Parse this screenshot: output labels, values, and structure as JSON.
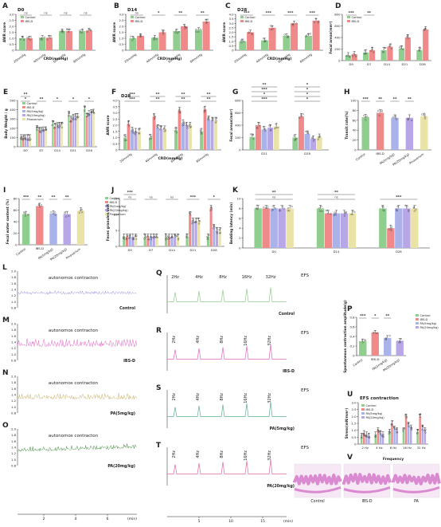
{
  "colors": {
    "control": "#8fce8f",
    "ibsd": "#f08a8a",
    "pa5": "#a9b3ea",
    "pa20": "#b7a7e6",
    "pinaverium": "#e9e3a8",
    "trace_control": "#9a8fd8",
    "trace_ibsd": "#e066c4",
    "trace_pa5": "#c8b068",
    "trace_pa20": "#3e8a3e",
    "trace_efs_pa5": "#5fb08a",
    "trace_efs_pa20": "#e06aa0",
    "histo": "#d98ad0"
  },
  "chart_data": [
    {
      "id": "A",
      "type": "bar",
      "panel_label": "A",
      "title": "D0",
      "ylabel": "AWR score",
      "xlabel": "CRD(mmHg)",
      "categories": [
        "20mmHg",
        "40mmHg",
        "60mmHg",
        "80mmHg"
      ],
      "ylim": [
        0,
        3
      ],
      "yticks": [
        "0",
        "0.5",
        "1.0",
        "1.5",
        "2.0",
        "2.5",
        "3.0"
      ],
      "series": [
        {
          "name": "Control",
          "values": [
            1.0,
            1.05,
            1.6,
            1.6
          ]
        },
        {
          "name": "IBS-D",
          "values": [
            1.0,
            1.05,
            1.6,
            1.65
          ]
        }
      ],
      "annotations": [
        "ns",
        "ns",
        "ns",
        "ns"
      ],
      "legend": [
        "Control",
        "IBS-D"
      ]
    },
    {
      "id": "B",
      "type": "bar",
      "panel_label": "B",
      "title": "D14",
      "ylabel": "AWR score",
      "xlabel": "CRD(mmHg)",
      "categories": [
        "20mmHg",
        "40mmHg",
        "60mmHg",
        "80mmHg"
      ],
      "ylim": [
        0,
        3
      ],
      "yticks": [
        "0",
        "0.5",
        "1.0",
        "1.5",
        "2.0",
        "2.5",
        "3.0"
      ],
      "series": [
        {
          "name": "Control",
          "values": [
            1.0,
            1.05,
            1.6,
            1.7
          ]
        },
        {
          "name": "IBS-D",
          "values": [
            1.2,
            1.5,
            2.0,
            2.4
          ]
        }
      ],
      "annotations": [
        "ns",
        "*",
        "**",
        "**"
      ],
      "legend": [
        "Control",
        "IBS-D"
      ]
    },
    {
      "id": "C",
      "type": "bar",
      "panel_label": "C",
      "title": "D28",
      "ylabel": "AWR score",
      "xlabel": "CRD(mmHg)",
      "categories": [
        "20mmHg",
        "40mmHg",
        "60mmHg",
        "80mmHg"
      ],
      "ylim": [
        0,
        4
      ],
      "yticks": [
        "0",
        "0.5",
        "1.0",
        "1.5",
        "2.0",
        "2.5",
        "3.0",
        "3.5",
        "4.0"
      ],
      "series": [
        {
          "name": "Control",
          "values": [
            1.0,
            1.1,
            1.6,
            1.6
          ]
        },
        {
          "name": "IBS-D",
          "values": [
            2.0,
            2.5,
            3.0,
            3.3
          ]
        }
      ],
      "annotations": [
        "***",
        "***",
        "***",
        "***"
      ],
      "legend": [
        "Control",
        "IBS-D"
      ]
    },
    {
      "id": "D",
      "type": "bar",
      "panel_label": "D",
      "ylabel": "Fecal areas(mm²)",
      "categories": [
        "D0",
        "D7",
        "D14",
        "D21",
        "D28"
      ],
      "ylim": [
        0,
        800
      ],
      "yticks": [
        "0",
        "200",
        "400",
        "600",
        "800"
      ],
      "series": [
        {
          "name": "Control",
          "values": [
            90,
            140,
            180,
            210,
            180
          ]
        },
        {
          "name": "IBS-D",
          "values": [
            110,
            180,
            240,
            400,
            540
          ]
        }
      ],
      "annotations": [
        "***",
        "**"
      ],
      "legend": [
        "Control",
        "IBS-D"
      ]
    },
    {
      "id": "E",
      "type": "bar",
      "panel_label": "E",
      "ylabel": "Body Weight / g",
      "categories": [
        "D0",
        "D7",
        "D14",
        "D21",
        "D28"
      ],
      "ylim": [
        0,
        500
      ],
      "yticks": [
        "0",
        "100",
        "200",
        "300",
        "400",
        "500"
      ],
      "series": [
        {
          "name": "Control",
          "values": [
            100,
            200,
            250,
            350,
            410
          ]
        },
        {
          "name": "IBS-D",
          "values": [
            100,
            180,
            220,
            300,
            330
          ]
        },
        {
          "name": "PA(5mg/kg)",
          "values": [
            100,
            180,
            230,
            320,
            360
          ]
        },
        {
          "name": "PA(20mg/kg)",
          "values": [
            100,
            185,
            235,
            325,
            370
          ]
        },
        {
          "name": "Pinaverium",
          "values": [
            100,
            185,
            235,
            330,
            375
          ]
        }
      ],
      "annotations": [
        "*",
        "**",
        "*",
        "*",
        "*",
        "**"
      ],
      "legend": [
        "Control",
        "IBS-D",
        "PA(5mg/kg)",
        "PA(20mg/kg)",
        "Pinaverium"
      ]
    },
    {
      "id": "F",
      "type": "bar",
      "panel_label": "F",
      "title": "D28",
      "ylabel": "AWR score",
      "xlabel": "CRD(mmHg)",
      "categories": [
        "20mmHg",
        "40mmHg",
        "60mmHg",
        "80mmHg"
      ],
      "ylim": [
        0,
        4
      ],
      "yticks": [
        "0",
        "0.5",
        "1.0",
        "1.5",
        "2.0",
        "2.5",
        "3.0",
        "3.5",
        "4.0"
      ],
      "series": [
        {
          "name": "Control",
          "values": [
            1.0,
            1.0,
            1.6,
            1.5
          ]
        },
        {
          "name": "IBS-D",
          "values": [
            2.1,
            2.7,
            3.2,
            3.3
          ]
        },
        {
          "name": "PA(5mg/kg)",
          "values": [
            1.6,
            1.8,
            2.2,
            2.5
          ]
        },
        {
          "name": "PA(20mg/kg)",
          "values": [
            1.5,
            1.7,
            2.0,
            2.4
          ]
        },
        {
          "name": "Pinaverium",
          "values": [
            1.5,
            1.7,
            2.0,
            2.4
          ]
        }
      ],
      "annotations": [
        "***",
        "**",
        "**",
        "**",
        "***",
        "**",
        "**",
        "**"
      ]
    },
    {
      "id": "G",
      "type": "bar",
      "panel_label": "G",
      "ylabel": "Fecal areas(mm²)",
      "categories": [
        "D21",
        "D28"
      ],
      "ylim": [
        0,
        800
      ],
      "yticks": [
        "0",
        "200",
        "400",
        "600",
        "800"
      ],
      "series": [
        {
          "name": "Control",
          "values": [
            210,
            200
          ]
        },
        {
          "name": "IBS-D",
          "values": [
            400,
            540
          ]
        },
        {
          "name": "PA(5mg/kg)",
          "values": [
            330,
            260
          ]
        },
        {
          "name": "PA(20mg/kg)",
          "values": [
            360,
            180
          ]
        },
        {
          "name": "Pinaverium",
          "values": [
            380,
            210
          ]
        }
      ],
      "annotations": [
        "***",
        "*",
        "*",
        "*",
        "***",
        "*",
        "**",
        "*"
      ]
    },
    {
      "id": "H",
      "type": "bar",
      "panel_label": "H",
      "ylabel": "Transit rate(%)",
      "categories": [
        "Control",
        "IBS-D",
        "PA(5mg/kg)",
        "PA(20mg/kg)",
        "Pinaverium"
      ],
      "ylim": [
        0,
        100
      ],
      "yticks": [
        "0",
        "20",
        "40",
        "60",
        "80",
        "100"
      ],
      "series": [
        {
          "name": "Transit",
          "values": [
            66,
            75,
            65,
            65,
            68
          ]
        }
      ],
      "annotations": [
        "***",
        "**",
        "**",
        "**"
      ]
    },
    {
      "id": "I",
      "type": "bar",
      "panel_label": "I",
      "ylabel": "Fecal water content (%)",
      "categories": [
        "Control",
        "IBS-D",
        "PA(5mg/kg)",
        "PA(20mg/kg)",
        "Pinaverium"
      ],
      "ylim": [
        0,
        80
      ],
      "yticks": [
        "0",
        "20",
        "40",
        "60",
        "80"
      ],
      "series": [
        {
          "name": "Water",
          "values": [
            53,
            67,
            54,
            53,
            59
          ]
        }
      ],
      "annotations": [
        "***",
        "**",
        "**",
        "**"
      ],
      "legend": [
        "Control",
        "IBS-D",
        "PA(5mg/kg)",
        "PA(20mg/kg)",
        "Pinaverium"
      ]
    },
    {
      "id": "J",
      "type": "bar",
      "panel_label": "J",
      "ylabel": "Feces granules/unit",
      "categories": [
        "D0",
        "D7",
        "D14",
        "D21",
        "D28"
      ],
      "ylim": [
        0,
        15
      ],
      "yticks": [
        "0",
        "5",
        "10",
        "15"
      ],
      "series": [
        {
          "name": "Control",
          "values": [
            3,
            3,
            3,
            3,
            3
          ]
        },
        {
          "name": "IBS-D",
          "values": [
            3,
            3,
            3,
            10,
            12
          ]
        },
        {
          "name": "PA(5mg/kg)",
          "values": [
            3,
            3,
            3,
            8,
            6
          ]
        },
        {
          "name": "PA(20mg/kg)",
          "values": [
            3,
            3,
            3,
            8,
            5
          ]
        },
        {
          "name": "Pinaverium",
          "values": [
            3,
            3,
            3,
            8,
            5
          ]
        }
      ],
      "annotations": [
        "ns",
        "ns",
        "ns",
        "***",
        "*",
        "***"
      ]
    },
    {
      "id": "K",
      "type": "bar",
      "panel_label": "K",
      "ylabel": "Bedding latency (min)",
      "categories": [
        "D0",
        "D14",
        "D28"
      ],
      "ylim": [
        0,
        10
      ],
      "yticks": [
        "0",
        "2",
        "4",
        "6",
        "8",
        "10"
      ],
      "series": [
        {
          "name": "Control",
          "values": [
            8,
            8,
            8
          ]
        },
        {
          "name": "IBS-D",
          "values": [
            8,
            7,
            4
          ]
        },
        {
          "name": "PA(5mg/kg)",
          "values": [
            8,
            7,
            8
          ]
        },
        {
          "name": "PA(20mg/kg)",
          "values": [
            8,
            7,
            8
          ]
        },
        {
          "name": "Pinaverium",
          "values": [
            8,
            7,
            8
          ]
        }
      ],
      "annotations": [
        "ns",
        "ns",
        "***",
        "**",
        "**"
      ]
    },
    {
      "id": "P",
      "type": "bar",
      "panel_label": "P",
      "ylabel": "Spontaneous contraction amplitude(g)",
      "categories": [
        "Control",
        "IBS-D",
        "PA(5mg/kg)",
        "PA(20mg/kg)"
      ],
      "ylim": [
        0,
        0.8
      ],
      "yticks": [
        "0",
        "0.2",
        "0.4",
        "0.6",
        "0.8"
      ],
      "series": [
        {
          "name": "Amplitude",
          "values": [
            0.3,
            0.48,
            0.37,
            0.31
          ]
        }
      ],
      "annotations": [
        "***",
        "*",
        "**"
      ],
      "legend": [
        "Control",
        "IBS-D",
        "PA(5mg/kg)",
        "PA(20mg/kg)"
      ]
    },
    {
      "id": "U",
      "type": "bar",
      "panel_label": "U",
      "title": "EFS contraction",
      "ylabel": "Stress(mN/mm²)",
      "xlabel": "Frequency",
      "categories": [
        "2 Hz",
        "4 Hz",
        "8 Hz",
        "16 Hz",
        "32 Hz"
      ],
      "ylim": [
        0,
        3
      ],
      "yticks": [
        "0",
        "0.5",
        "1.0",
        "1.5",
        "2.0",
        "2.5",
        "3.0"
      ],
      "series": [
        {
          "name": "Control",
          "values": [
            0.6,
            0.7,
            0.9,
            1.0,
            0.9
          ]
        },
        {
          "name": "IBS-D",
          "values": [
            0.8,
            1.0,
            1.5,
            2.0,
            2.0
          ]
        },
        {
          "name": "PA(5mg/kg)",
          "values": [
            0.7,
            0.8,
            1.1,
            1.4,
            1.2
          ]
        },
        {
          "name": "PA(20mg/kg)",
          "values": [
            0.6,
            0.7,
            1.0,
            1.2,
            1.0
          ]
        }
      ],
      "legend": [
        "Control",
        "IBS-D",
        "PA(5mg/kg)",
        "PA(20mg/kg)"
      ]
    }
  ],
  "traces": [
    {
      "label": "L",
      "text": "autonomos contracton",
      "name": "Control",
      "yticks": [
        "2.0",
        "1.8",
        "1.6",
        "1.4",
        "1.2",
        "1.0",
        "0.8"
      ]
    },
    {
      "label": "M",
      "text": "autonomos contracton",
      "name": "IBS-D",
      "yticks": [
        "2.0",
        "1.8",
        "1.6",
        "1.4",
        "1.2",
        "1.0",
        "0.8"
      ]
    },
    {
      "label": "N",
      "text": "autonomos contracton",
      "name": "PA(5mg/kg)",
      "yticks": [
        "2.0",
        "1.8",
        "1.6",
        "1.4",
        "1.2",
        "1.0",
        "0.8"
      ]
    },
    {
      "label": "O",
      "text": "autonomos contracton",
      "name": "PA(20mg/kg)",
      "yticks": [
        "2.0",
        "1.8",
        "1.6",
        "1.4",
        "1.2",
        "1.0",
        "0.8"
      ]
    }
  ],
  "trace_axis": {
    "ticks": [
      "2",
      "4",
      "6"
    ],
    "unit": "(min)"
  },
  "efs": [
    {
      "label": "Q",
      "tag": "EFS",
      "name": "Control",
      "freqs": [
        "2Hz",
        "4Hz",
        "8Hz",
        "16Hz",
        "32Hz"
      ]
    },
    {
      "label": "R",
      "tag": "EFS",
      "name": "IBS-D",
      "freqs": [
        "2Hz",
        "4Hz",
        "8Hz",
        "16Hz",
        "32Hz"
      ]
    },
    {
      "label": "S",
      "tag": "EFS",
      "name": "PA(5mg/kg)",
      "freqs": [
        "2Hz",
        "4Hz",
        "8Hz",
        "16Hz",
        "32Hz"
      ]
    },
    {
      "label": "T",
      "tag": "EFS",
      "name": "PA(20mg/kg)",
      "freqs": [
        "2Hz",
        "4Hz",
        "8Hz",
        "16Hz",
        "32Hz"
      ]
    }
  ],
  "efs_axis": {
    "ticks": [
      "5",
      "10",
      "15"
    ],
    "unit": "(min)"
  },
  "histology": {
    "label": "V",
    "images": [
      "Control",
      "IBS-D",
      "PA"
    ]
  }
}
